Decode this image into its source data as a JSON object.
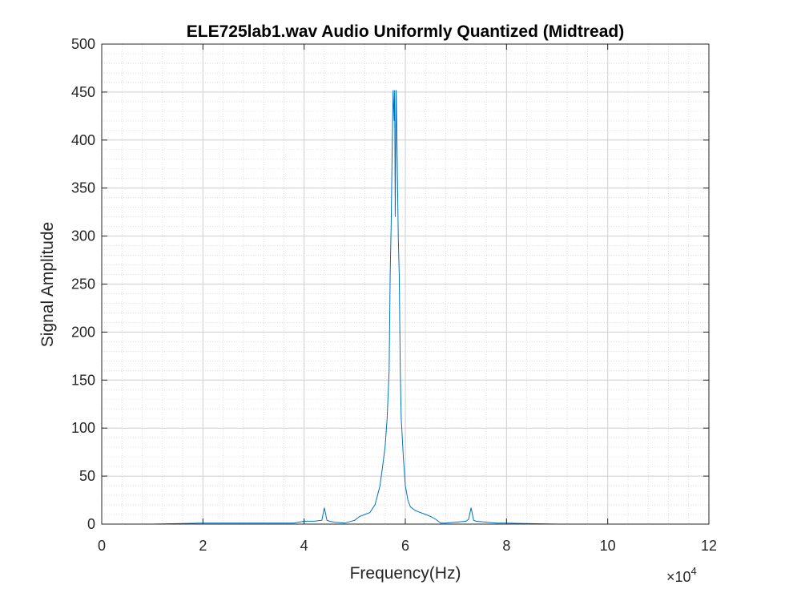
{
  "chart_data": {
    "type": "line",
    "title": "ELE725lab1.wav Audio Uniformly Quantized (Midtread)",
    "xlabel": "Frequency(Hz)",
    "ylabel": "Signal Amplitude",
    "xlim": [
      0,
      120000
    ],
    "ylim": [
      0,
      500
    ],
    "x_ticks": [
      0,
      20000,
      40000,
      60000,
      80000,
      100000,
      120000
    ],
    "x_tick_labels": [
      "0",
      "2",
      "4",
      "6",
      "8",
      "10",
      "12"
    ],
    "x_exponent_label": "×10",
    "x_exponent_power": "4",
    "y_ticks": [
      0,
      50,
      100,
      150,
      200,
      250,
      300,
      350,
      400,
      450,
      500
    ],
    "y_tick_labels": [
      "0",
      "50",
      "100",
      "150",
      "200",
      "250",
      "300",
      "350",
      "400",
      "450",
      "500"
    ],
    "grid": true,
    "minor_grid": true,
    "line_color": "#0072BD",
    "series": [
      {
        "x": [
          0,
          10000,
          20000,
          30000,
          38000,
          40000,
          42000,
          43500,
          44000,
          44500,
          45000,
          46000,
          48000,
          50000,
          51000,
          52000,
          53000,
          54000,
          54500,
          55000,
          55500,
          56000,
          56400,
          56800,
          57000,
          57200,
          57400,
          57600,
          57800,
          57900,
          58000,
          58200,
          58400,
          58600,
          58800,
          59000,
          59200,
          59600,
          60000,
          60500,
          61000,
          62000,
          63000,
          64000,
          65000,
          66000,
          66500,
          67000,
          68000,
          70000,
          72000,
          72500,
          73000,
          73500,
          74000,
          76000,
          78000,
          80000,
          90000,
          100000,
          110000,
          115000,
          120000
        ],
        "y": [
          0,
          0,
          1,
          1,
          1,
          3,
          3,
          4,
          17,
          4,
          3,
          2,
          1,
          4,
          8,
          10,
          12,
          20,
          30,
          40,
          60,
          80,
          110,
          160,
          260,
          310,
          390,
          452,
          420,
          452,
          320,
          452,
          380,
          300,
          260,
          160,
          110,
          70,
          40,
          25,
          18,
          14,
          12,
          10,
          8,
          5,
          3,
          1,
          1,
          2,
          3,
          5,
          17,
          4,
          3,
          2,
          1,
          1,
          0,
          0,
          0,
          0,
          0
        ]
      }
    ]
  }
}
